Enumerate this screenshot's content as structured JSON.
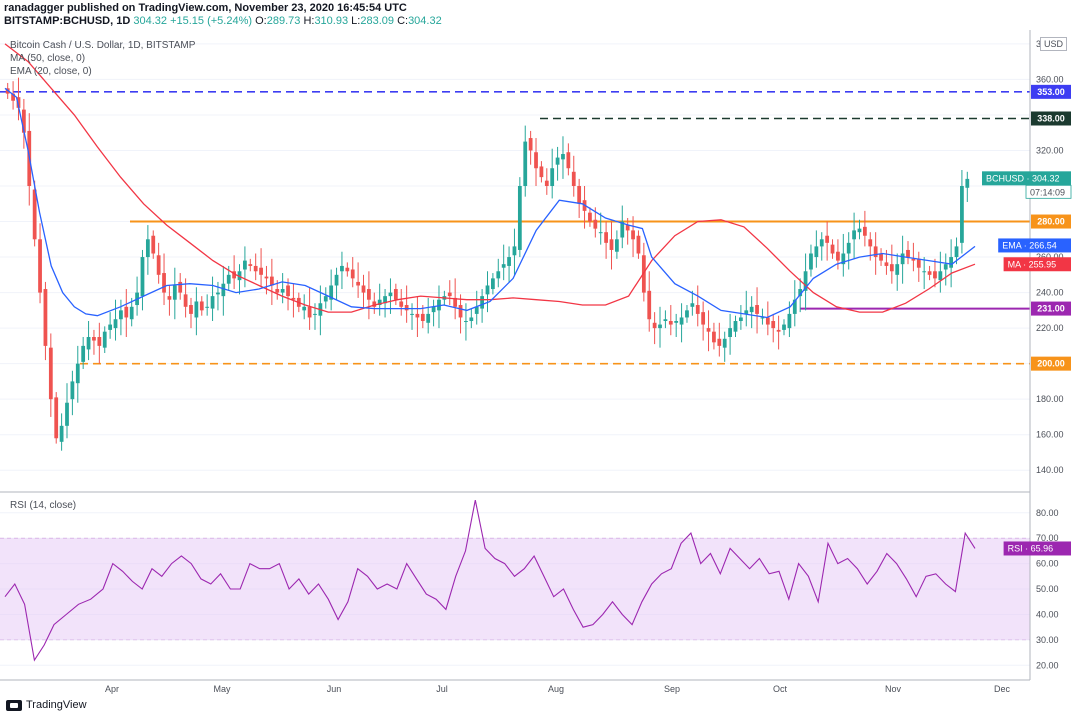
{
  "header": {
    "line1": "ranadagger published on TradingView.com, November 23, 2020 16:45:54 UTC",
    "symbol": "BITSTAMP:BCHUSD, 1D",
    "ohlc_price": "304.32",
    "ohlc_change": "+15.15 (+5.24%)",
    "o_label": "O:",
    "o_value": "289.73",
    "h_label": "H:",
    "h_value": "310.93",
    "l_label": "L:",
    "l_value": "283.09",
    "c_label": "C:",
    "c_value": "304.32"
  },
  "legend": {
    "title": "Bitcoin Cash / U.S. Dollar, 1D, BITSTAMP",
    "ma": "MA (50, close, 0)",
    "ema": "EMA (20, close, 0)",
    "rsi": "RSI (14, close)"
  },
  "currency": "USD",
  "footer": {
    "brand": "TradingView"
  },
  "chart_data": {
    "type": "candlestick",
    "price_axis": {
      "min": 130,
      "max": 385,
      "ticks": [
        140,
        160,
        180,
        200,
        220,
        240,
        260,
        280,
        300,
        320,
        340,
        360,
        380
      ],
      "tick_labels": [
        "140.00",
        "160.00",
        "180.00",
        "200.00",
        "220.00",
        "240.00",
        "260.00",
        "280.00",
        "300.00",
        "320.00",
        "340.00",
        "360.00",
        "380.00"
      ]
    },
    "rsi_axis": {
      "min": 15,
      "max": 87,
      "ticks": [
        20,
        30,
        40,
        50,
        60,
        70,
        80
      ],
      "tick_labels": [
        "20.00",
        "30.00",
        "40.00",
        "50.00",
        "60.00",
        "70.00",
        "80.00"
      ],
      "band": [
        30,
        70
      ]
    },
    "x_axis": {
      "labels": [
        "Apr",
        "May",
        "Jun",
        "Jul",
        "Aug",
        "Sep",
        "Oct",
        "Nov",
        "Dec"
      ]
    },
    "levels": [
      {
        "value": 353,
        "label": "353.00",
        "color": "#3d3df2",
        "style": "dashed"
      },
      {
        "value": 338,
        "label": "338.00",
        "color": "#1b3a2f",
        "style": "dashed"
      },
      {
        "value": 280,
        "label": "280.00",
        "color": "#f7931a",
        "style": "solid"
      },
      {
        "value": 231,
        "label": "231.00",
        "color": "#9c27b0",
        "style": "solid"
      },
      {
        "value": 200,
        "label": "200.00",
        "color": "#f7931a",
        "style": "dashed"
      }
    ],
    "price_tags": [
      {
        "value": 304.32,
        "label": "BCHUSD · 304.32",
        "sub": "07:14:09",
        "color": "#26a69a"
      },
      {
        "value": 266.54,
        "label": "EMA · 266.54",
        "color": "#2962ff"
      },
      {
        "value": 255.95,
        "label": "MA · 255.95",
        "color": "#f23645"
      },
      {
        "value": 65.96,
        "label": "RSI · 65.96",
        "color": "#9c27b0",
        "pane": "rsi"
      }
    ],
    "ma_series": {
      "name": "MA",
      "color": "#f23645",
      "values": [
        [
          0,
          380
        ],
        [
          10,
          370
        ],
        [
          20,
          355
        ],
        [
          30,
          340
        ],
        [
          40,
          322
        ],
        [
          50,
          305
        ],
        [
          60,
          290
        ],
        [
          70,
          278
        ],
        [
          80,
          268
        ],
        [
          90,
          258
        ],
        [
          100,
          250
        ],
        [
          110,
          244
        ],
        [
          120,
          238
        ],
        [
          130,
          233
        ],
        [
          140,
          229
        ],
        [
          150,
          229
        ],
        [
          160,
          233
        ],
        [
          170,
          236
        ],
        [
          180,
          238
        ],
        [
          190,
          237
        ],
        [
          200,
          236
        ],
        [
          210,
          236
        ],
        [
          220,
          237
        ],
        [
          230,
          236
        ],
        [
          240,
          235
        ],
        [
          250,
          233
        ],
        [
          260,
          233
        ],
        [
          270,
          238
        ],
        [
          280,
          258
        ],
        [
          290,
          272
        ],
        [
          300,
          280
        ],
        [
          310,
          281
        ],
        [
          320,
          277
        ],
        [
          330,
          265
        ],
        [
          340,
          252
        ],
        [
          350,
          240
        ],
        [
          360,
          232
        ],
        [
          370,
          229
        ],
        [
          380,
          229
        ],
        [
          390,
          234
        ],
        [
          400,
          242
        ],
        [
          410,
          251
        ],
        [
          420,
          256
        ]
      ]
    },
    "ema_series": {
      "name": "EMA",
      "color": "#2962ff",
      "values": [
        [
          0,
          355
        ],
        [
          5,
          350
        ],
        [
          10,
          320
        ],
        [
          15,
          285
        ],
        [
          20,
          255
        ],
        [
          25,
          240
        ],
        [
          30,
          232
        ],
        [
          35,
          228
        ],
        [
          40,
          227
        ],
        [
          50,
          232
        ],
        [
          60,
          238
        ],
        [
          70,
          244
        ],
        [
          80,
          245
        ],
        [
          90,
          244
        ],
        [
          100,
          240
        ],
        [
          110,
          242
        ],
        [
          120,
          246
        ],
        [
          130,
          244
        ],
        [
          140,
          238
        ],
        [
          150,
          232
        ],
        [
          160,
          231
        ],
        [
          170,
          231
        ],
        [
          180,
          231
        ],
        [
          190,
          233
        ],
        [
          200,
          230
        ],
        [
          210,
          235
        ],
        [
          220,
          248
        ],
        [
          230,
          275
        ],
        [
          240,
          292
        ],
        [
          250,
          290
        ],
        [
          260,
          282
        ],
        [
          270,
          278
        ],
        [
          276,
          276
        ],
        [
          280,
          260
        ],
        [
          290,
          245
        ],
        [
          300,
          238
        ],
        [
          310,
          230
        ],
        [
          320,
          228
        ],
        [
          330,
          226
        ],
        [
          340,
          232
        ],
        [
          350,
          248
        ],
        [
          360,
          256
        ],
        [
          370,
          260
        ],
        [
          380,
          262
        ],
        [
          390,
          260
        ],
        [
          400,
          258
        ],
        [
          410,
          256
        ],
        [
          420,
          266
        ]
      ]
    },
    "rsi_series": {
      "name": "RSI",
      "color": "#9c27b0",
      "values": [
        [
          0,
          47
        ],
        [
          4,
          52
        ],
        [
          8,
          44
        ],
        [
          12,
          22
        ],
        [
          16,
          28
        ],
        [
          20,
          36
        ],
        [
          25,
          40
        ],
        [
          30,
          44
        ],
        [
          35,
          46
        ],
        [
          40,
          50
        ],
        [
          44,
          60
        ],
        [
          48,
          57
        ],
        [
          52,
          53
        ],
        [
          56,
          50
        ],
        [
          60,
          58
        ],
        [
          64,
          55
        ],
        [
          68,
          60
        ],
        [
          72,
          63
        ],
        [
          76,
          60
        ],
        [
          80,
          54
        ],
        [
          84,
          52
        ],
        [
          88,
          56
        ],
        [
          92,
          50
        ],
        [
          96,
          50
        ],
        [
          100,
          60
        ],
        [
          104,
          58
        ],
        [
          108,
          58
        ],
        [
          112,
          60
        ],
        [
          116,
          50
        ],
        [
          120,
          54
        ],
        [
          124,
          48
        ],
        [
          128,
          52
        ],
        [
          132,
          46
        ],
        [
          136,
          38
        ],
        [
          140,
          45
        ],
        [
          144,
          58
        ],
        [
          148,
          55
        ],
        [
          152,
          50
        ],
        [
          156,
          52
        ],
        [
          160,
          50
        ],
        [
          164,
          60
        ],
        [
          168,
          54
        ],
        [
          172,
          48
        ],
        [
          176,
          46
        ],
        [
          180,
          42
        ],
        [
          184,
          55
        ],
        [
          188,
          65
        ],
        [
          192,
          85
        ],
        [
          196,
          66
        ],
        [
          200,
          62
        ],
        [
          204,
          60
        ],
        [
          208,
          55
        ],
        [
          212,
          58
        ],
        [
          216,
          63
        ],
        [
          220,
          55
        ],
        [
          224,
          47
        ],
        [
          228,
          50
        ],
        [
          232,
          42
        ],
        [
          236,
          35
        ],
        [
          240,
          36
        ],
        [
          244,
          40
        ],
        [
          248,
          45
        ],
        [
          252,
          40
        ],
        [
          256,
          36
        ],
        [
          260,
          45
        ],
        [
          264,
          52
        ],
        [
          268,
          56
        ],
        [
          272,
          58
        ],
        [
          276,
          68
        ],
        [
          280,
          72
        ],
        [
          284,
          60
        ],
        [
          288,
          64
        ],
        [
          292,
          56
        ],
        [
          296,
          66
        ],
        [
          300,
          62
        ],
        [
          304,
          58
        ],
        [
          308,
          62
        ],
        [
          312,
          56
        ],
        [
          316,
          57
        ],
        [
          320,
          46
        ],
        [
          324,
          60
        ],
        [
          328,
          55
        ],
        [
          332,
          45
        ],
        [
          336,
          68
        ],
        [
          340,
          60
        ],
        [
          344,
          62
        ],
        [
          348,
          58
        ],
        [
          352,
          52
        ],
        [
          356,
          57
        ],
        [
          360,
          64
        ],
        [
          364,
          60
        ],
        [
          368,
          54
        ],
        [
          372,
          47
        ],
        [
          376,
          55
        ],
        [
          380,
          56
        ],
        [
          384,
          52
        ],
        [
          388,
          49
        ],
        [
          392,
          72
        ],
        [
          396,
          66
        ]
      ]
    },
    "candles_note": "OHLC values per day, derived from close series",
    "close_series": [
      352,
      348,
      344,
      330,
      300,
      270,
      240,
      210,
      180,
      158,
      165,
      178,
      190,
      200,
      210,
      215,
      213,
      210,
      218,
      222,
      225,
      230,
      226,
      232,
      240,
      260,
      270,
      262,
      250,
      240,
      236,
      244,
      240,
      232,
      228,
      235,
      230,
      232,
      238,
      240,
      245,
      250,
      248,
      252,
      258,
      255,
      252,
      250,
      248,
      244,
      240,
      242,
      238,
      236,
      232,
      232,
      226,
      228,
      234,
      238,
      244,
      250,
      255,
      252,
      248,
      244,
      240,
      236,
      232,
      236,
      238,
      240,
      236,
      232,
      230,
      228,
      226,
      224,
      228,
      232,
      236,
      238,
      238,
      232,
      226,
      224,
      226,
      232,
      238,
      244,
      248,
      252,
      256,
      260,
      266,
      300,
      325,
      320,
      310,
      305,
      300,
      310,
      316,
      318,
      310,
      300,
      290,
      286,
      280,
      276,
      274,
      268,
      264,
      270,
      280,
      275,
      270,
      262,
      240,
      225,
      220,
      222,
      225,
      222,
      224,
      226,
      230,
      234,
      228,
      222,
      218,
      212,
      210,
      214,
      220,
      224,
      226,
      230,
      232,
      228,
      226,
      222,
      220,
      218,
      222,
      228,
      236,
      242,
      252,
      262,
      266,
      270,
      268,
      262,
      258,
      262,
      268,
      275,
      276,
      272,
      266,
      260,
      258,
      255,
      252,
      256,
      262,
      260,
      258,
      254,
      252,
      250,
      248,
      252,
      256,
      260,
      266,
      300,
      304
    ]
  }
}
